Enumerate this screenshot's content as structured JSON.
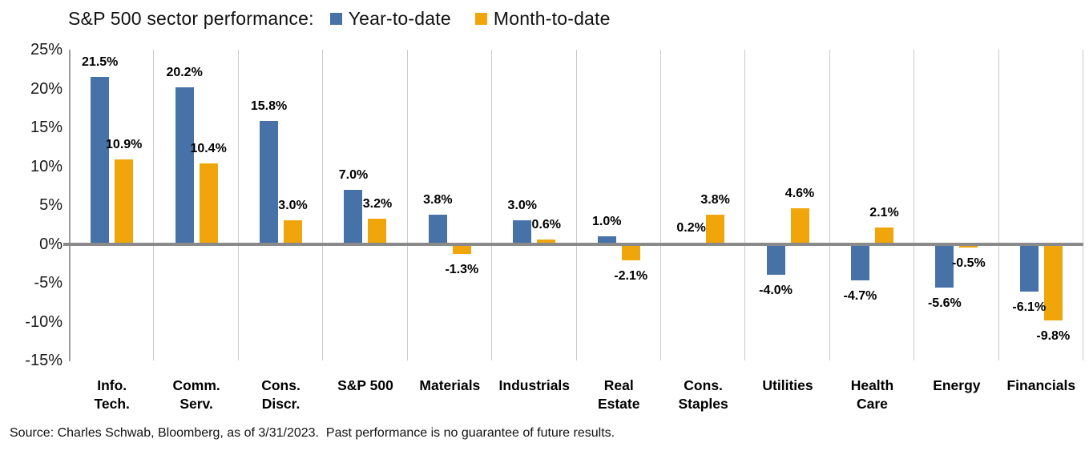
{
  "title": "S&P 500 sector performance:",
  "legend": [
    {
      "label": "Year-to-date",
      "color": "#4672A8"
    },
    {
      "label": "Month-to-date",
      "color": "#F0A50A"
    }
  ],
  "source": "Source: Charles Schwab, Bloomberg, as of 3/31/2023.  Past performance is no guarantee of future results.",
  "colors": {
    "ytd_bar": "#4672A8",
    "mtd_bar": "#F0A50A",
    "zero_line": "#8a8a8a",
    "gridline": "#cbcbcb",
    "axis_line": "#9b9b9b"
  },
  "chart_data": {
    "type": "bar",
    "title": "S&P 500 sector performance:",
    "categories": [
      "Info.\nTech.",
      "Comm.\nServ.",
      "Cons.\nDiscr.",
      "S&P 500",
      "Materials",
      "Industrials",
      "Real\nEstate",
      "Cons.\nStaples",
      "Utilities",
      "Health\nCare",
      "Energy",
      "Financials"
    ],
    "series": [
      {
        "name": "Year-to-date",
        "color": "#4672A8",
        "values": [
          21.5,
          20.2,
          15.8,
          7.0,
          3.8,
          3.0,
          1.0,
          0.2,
          -4.0,
          -4.7,
          -5.6,
          -6.1
        ]
      },
      {
        "name": "Month-to-date",
        "color": "#F0A50A",
        "values": [
          10.9,
          10.4,
          3.0,
          3.2,
          -1.3,
          0.6,
          -2.1,
          3.8,
          4.6,
          2.1,
          -0.5,
          -9.8
        ]
      }
    ],
    "value_label_format": "0.0%",
    "y_ticks": [
      25,
      20,
      15,
      10,
      5,
      0,
      -5,
      -10,
      -15
    ],
    "y_tick_suffix": "%",
    "ylim": [
      -15,
      25
    ],
    "grid": "vertical-only",
    "legend_position": "top"
  }
}
